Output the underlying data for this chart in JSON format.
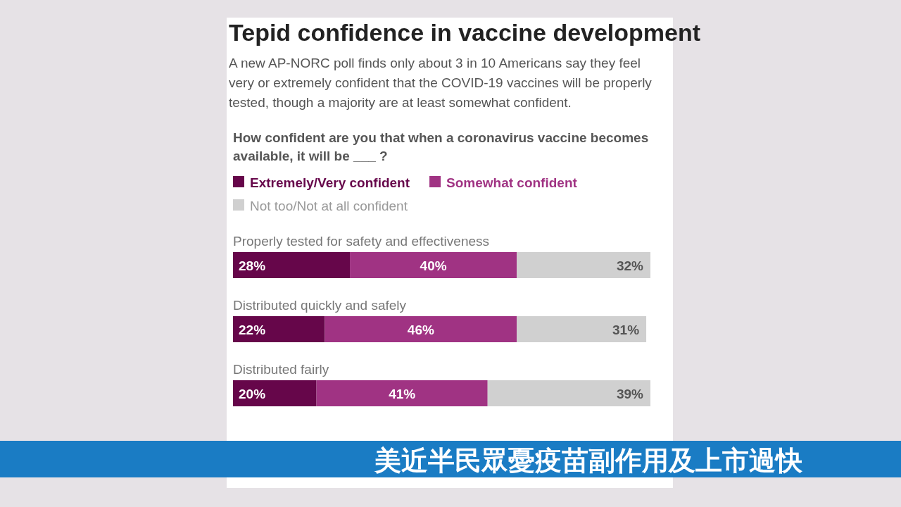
{
  "chart_data": {
    "type": "bar",
    "orientation": "horizontal",
    "stacked": true,
    "title": "Tepid confidence in vaccine development",
    "subtitle": "A new AP-NORC poll finds only about 3 in 10 Americans say they feel very or extremely confident that the COVID-19 vaccines will be properly tested, though a majority are at least somewhat confident.",
    "annotations": [
      "How confident are you that when a coronavirus vaccine becomes available, it will be ___ ?",
      "美近半民眾憂疫苗副作用及上市過快"
    ],
    "categories": [
      "Properly tested for safety and effectiveness",
      "Distributed quickly and safely",
      "Distributed fairly"
    ],
    "xlim": [
      0,
      100
    ],
    "legend": "top",
    "series": [
      {
        "name": "Extremely/Very confident",
        "color": "#66064a",
        "values": [
          28,
          22,
          20
        ],
        "value_labels": [
          "28%",
          "22%",
          "20%"
        ]
      },
      {
        "name": "Somewhat confident",
        "color": "#a03383",
        "values": [
          40,
          46,
          41
        ],
        "value_labels": [
          "40%",
          "46%",
          "41%"
        ]
      },
      {
        "name": "Not too/Not at all confident",
        "color": "#d0d0d0",
        "values": [
          32,
          31,
          39
        ],
        "value_labels": [
          "32%",
          "31%",
          "39%"
        ]
      }
    ]
  }
}
